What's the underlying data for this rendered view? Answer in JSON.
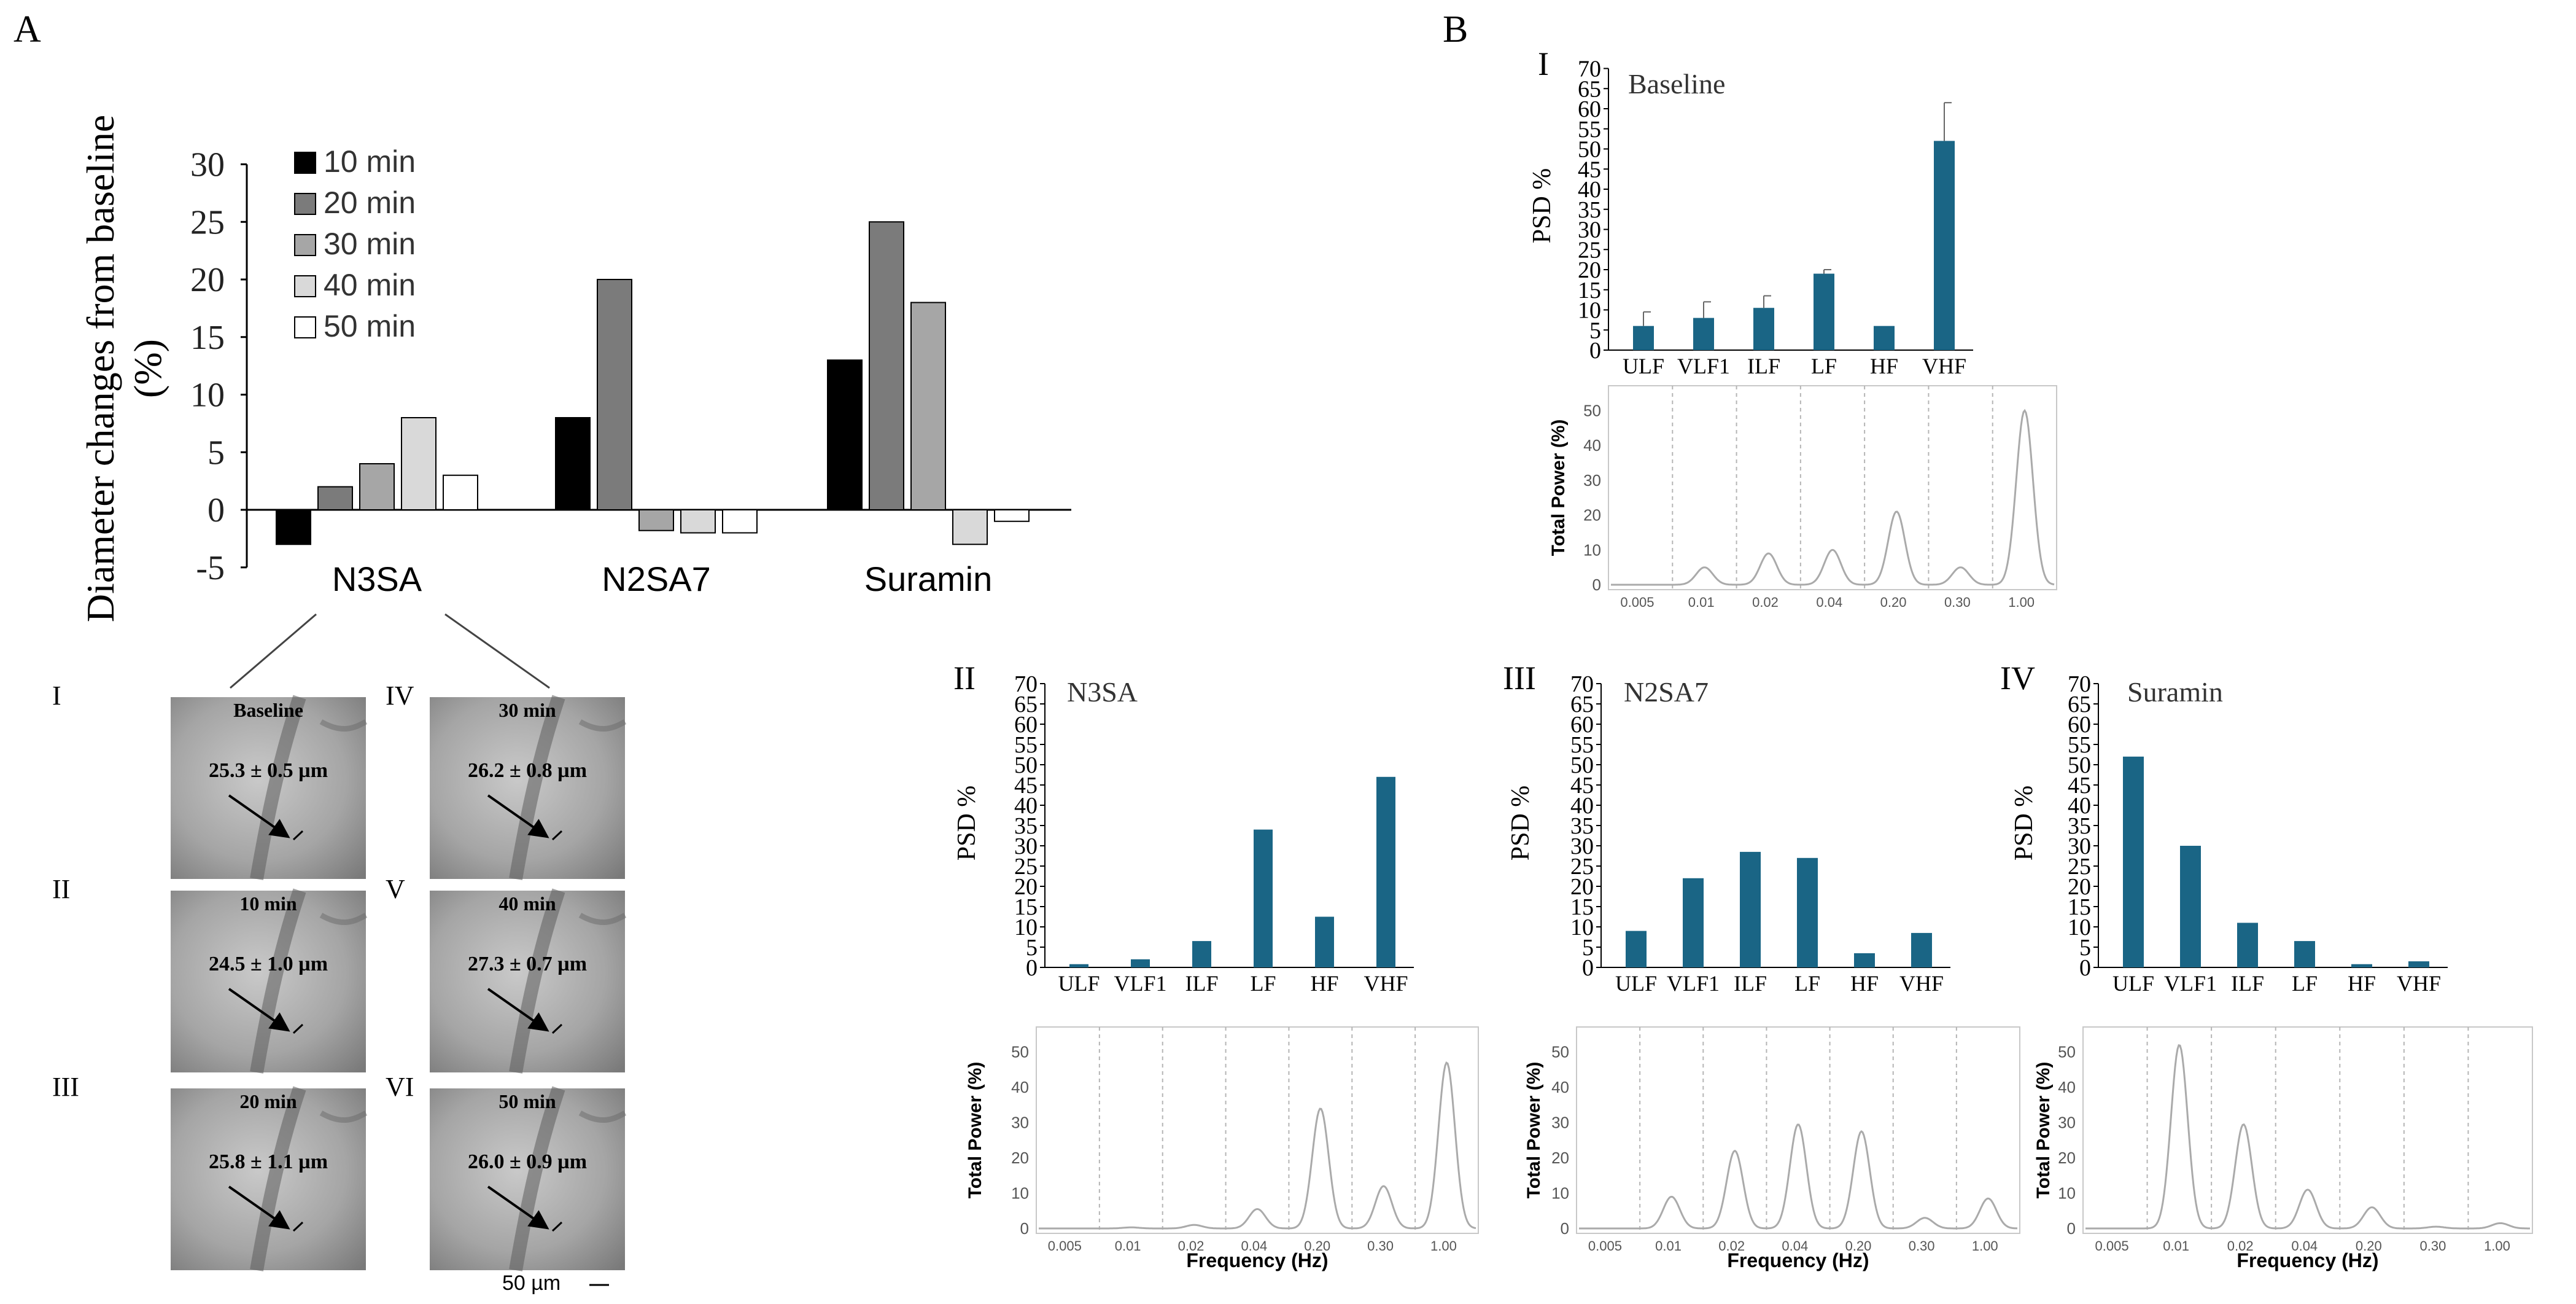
{
  "colors": {
    "psd_bar": "#1a6585",
    "spectrum_line": "#aaaaaa",
    "grid_dash": "#b5b5b5"
  },
  "panel_labels": {
    "a": "A",
    "b": "B"
  },
  "chart_data": [
    {
      "id": "diameter",
      "type": "bar",
      "ylabel_line1": "Diameter  changes  from baseline",
      "ylabel_line2": "(%)",
      "ylim": [
        -5,
        30
      ],
      "yticks": [
        "30",
        "25",
        "20",
        "15",
        "10",
        "5",
        "0",
        "-5"
      ],
      "categories": [
        "N3SA",
        "N2SA7",
        "Suramin"
      ],
      "series": [
        {
          "name": "10 min",
          "color": "#000000",
          "values": [
            -3,
            8,
            13
          ]
        },
        {
          "name": "20 min",
          "color": "#7b7b7b",
          "values": [
            2,
            20,
            25
          ]
        },
        {
          "name": "30 min",
          "color": "#a6a6a6",
          "values": [
            4,
            -1.8,
            18
          ]
        },
        {
          "name": "40 min",
          "color": "#d9d9d9",
          "values": [
            8,
            -2,
            -3
          ]
        },
        {
          "name": "50 min",
          "color": "#ffffff",
          "values": [
            3,
            -2,
            -1
          ]
        }
      ]
    },
    {
      "id": "psd_baseline",
      "type": "bar",
      "roman": "I",
      "title": "Baseline",
      "ylabel": "PSD %",
      "ylim": [
        0,
        70
      ],
      "yticks": [
        "0",
        "5",
        "10",
        "15",
        "20",
        "25",
        "30",
        "35",
        "40",
        "45",
        "50",
        "55",
        "60",
        "65",
        "70"
      ],
      "categories": [
        "ULF",
        "VLF1",
        "ILF",
        "LF",
        "HF",
        "VHF"
      ],
      "values": [
        6,
        8,
        10.5,
        19,
        6,
        52
      ],
      "errors": [
        3.5,
        4,
        3,
        1,
        0,
        9.5
      ]
    },
    {
      "id": "psd_n3sa",
      "type": "bar",
      "roman": "II",
      "title": "N3SA",
      "ylabel": "PSD %",
      "ylim": [
        0,
        70
      ],
      "yticks": [
        "0",
        "5",
        "10",
        "15",
        "20",
        "25",
        "30",
        "35",
        "40",
        "45",
        "50",
        "55",
        "60",
        "65",
        "70"
      ],
      "categories": [
        "ULF",
        "VLF1",
        "ILF",
        "LF",
        "HF",
        "VHF"
      ],
      "values": [
        0.8,
        2,
        6.5,
        34,
        12.5,
        47
      ]
    },
    {
      "id": "psd_n2sa7",
      "type": "bar",
      "roman": "III",
      "title": "N2SA7",
      "ylabel": "PSD %",
      "ylim": [
        0,
        70
      ],
      "yticks": [
        "0",
        "5",
        "10",
        "15",
        "20",
        "25",
        "30",
        "35",
        "40",
        "45",
        "50",
        "55",
        "60",
        "65",
        "70"
      ],
      "categories": [
        "ULF",
        "VLF1",
        "ILF",
        "LF",
        "HF",
        "VHF"
      ],
      "values": [
        9,
        22,
        28.5,
        27,
        3.5,
        8.5
      ]
    },
    {
      "id": "psd_suramin",
      "type": "bar",
      "roman": "IV",
      "title": "Suramin",
      "ylabel": "PSD %",
      "ylim": [
        0,
        70
      ],
      "yticks": [
        "0",
        "5",
        "10",
        "15",
        "20",
        "25",
        "30",
        "35",
        "40",
        "45",
        "50",
        "55",
        "60",
        "65",
        "70"
      ],
      "categories": [
        "ULF",
        "VLF1",
        "ILF",
        "LF",
        "HF",
        "VHF"
      ],
      "values": [
        52,
        30,
        11,
        6.5,
        0.8,
        1.5
      ]
    },
    {
      "id": "spec_baseline",
      "type": "line",
      "ylabel": "Total Power (%)",
      "xlabel": "",
      "ylim": [
        0,
        55
      ],
      "yticks": [
        "0",
        "10",
        "20",
        "30",
        "40",
        "50"
      ],
      "xticks": [
        "0.005",
        "0.01",
        "0.02",
        "0.04",
        "0.20",
        "0.30",
        "1.00"
      ],
      "peaks": [
        5,
        9,
        10,
        21,
        5,
        50
      ]
    },
    {
      "id": "spec_n3sa",
      "type": "line",
      "ylabel": "Total Power (%)",
      "xlabel": "Frequency (Hz)",
      "ylim": [
        0,
        55
      ],
      "yticks": [
        "0",
        "10",
        "20",
        "30",
        "40",
        "50"
      ],
      "xticks": [
        "0.005",
        "0.01",
        "0.02",
        "0.04",
        "0.20",
        "0.30",
        "1.00"
      ],
      "peaks": [
        0.3,
        1,
        5.5,
        34,
        12,
        47
      ]
    },
    {
      "id": "spec_n2sa7",
      "type": "line",
      "ylabel": "Total Power (%)",
      "xlabel": "Frequency (Hz)",
      "ylim": [
        0,
        55
      ],
      "yticks": [
        "0",
        "10",
        "20",
        "30",
        "40",
        "50"
      ],
      "xticks": [
        "0.005",
        "0.01",
        "0.02",
        "0.04",
        "0.20",
        "0.30",
        "1.00"
      ],
      "peaks": [
        9,
        22,
        29.5,
        27.5,
        3,
        8.5
      ]
    },
    {
      "id": "spec_suramin",
      "type": "line",
      "ylabel": "Total Power (%)",
      "xlabel": "Frequency (Hz)",
      "ylim": [
        0,
        55
      ],
      "yticks": [
        "0",
        "10",
        "20",
        "30",
        "40",
        "50"
      ],
      "xticks": [
        "0.005",
        "0.01",
        "0.02",
        "0.04",
        "0.20",
        "0.30",
        "1.00"
      ],
      "peaks": [
        52,
        29.5,
        11,
        6,
        0.5,
        1.5
      ]
    }
  ],
  "photos": [
    {
      "roman": "I",
      "title": "Baseline",
      "measurement": "25.3 ± 0.5 µm"
    },
    {
      "roman": "II",
      "title": "10 min",
      "measurement": "24.5 ± 1.0 µm"
    },
    {
      "roman": "III",
      "title": "20 min",
      "measurement": "25.8 ± 1.1 µm"
    },
    {
      "roman": "IV",
      "title": "30 min",
      "measurement": "26.2 ± 0.8 µm"
    },
    {
      "roman": "V",
      "title": "40 min",
      "measurement": "27.3 ± 0.7 µm"
    },
    {
      "roman": "VI",
      "title": "50 min",
      "measurement": "26.0 ± 0.9 µm"
    }
  ],
  "scale_bar_label": "50   µm"
}
